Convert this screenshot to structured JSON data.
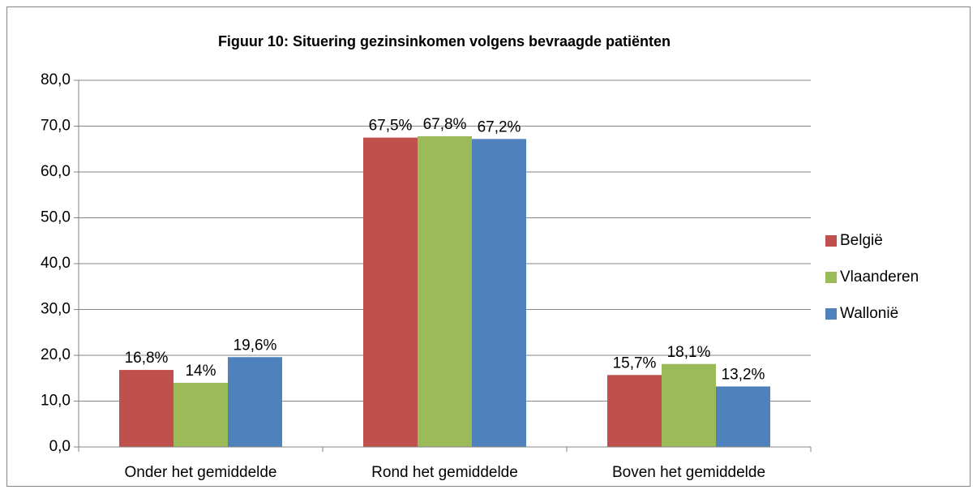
{
  "chart_data": {
    "type": "bar",
    "title": "Figuur 10: Situering gezinsinkomen volgens bevraagde patiënten",
    "categories": [
      "Onder het gemiddelde",
      "Rond het gemiddelde",
      "Boven het gemiddelde"
    ],
    "series": [
      {
        "name": "België",
        "color": "#c0504d",
        "values": [
          16.8,
          67.5,
          15.7
        ],
        "value_labels": [
          "16,8%",
          "67,5%",
          "15,7%"
        ]
      },
      {
        "name": "Vlaanderen",
        "color": "#9bbb59",
        "values": [
          14,
          67.8,
          18.1
        ],
        "value_labels": [
          "14%",
          "67,8%",
          "18,1%"
        ]
      },
      {
        "name": "Wallonië",
        "color": "#4f81bd",
        "values": [
          19.6,
          67.2,
          13.2
        ],
        "value_labels": [
          "19,6%",
          "67,2%",
          "13,2%"
        ]
      }
    ],
    "ylim": [
      0,
      80
    ],
    "yticks": [
      {
        "value": 0,
        "label": "0,0"
      },
      {
        "value": 10,
        "label": "10,0"
      },
      {
        "value": 20,
        "label": "20,0"
      },
      {
        "value": 30,
        "label": "30,0"
      },
      {
        "value": 40,
        "label": "40,0"
      },
      {
        "value": 50,
        "label": "50,0"
      },
      {
        "value": 60,
        "label": "60,0"
      },
      {
        "value": 70,
        "label": "70,0"
      },
      {
        "value": 80,
        "label": "80,0"
      }
    ],
    "grid": true,
    "legend": "right"
  }
}
